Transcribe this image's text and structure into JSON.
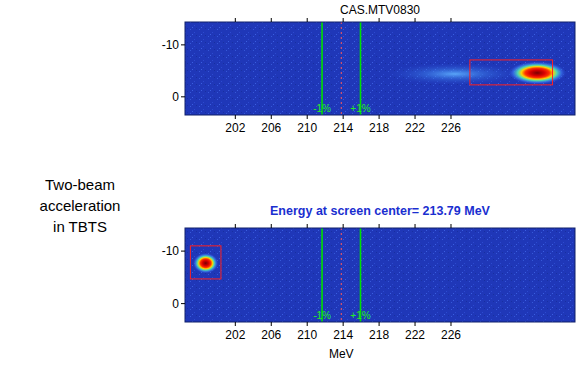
{
  "caption": [
    "Two-beam",
    "acceleration",
    "in TBTS"
  ],
  "chart_data": [
    {
      "type": "heatmap",
      "title": "CAS.MTV0830",
      "xlim": [
        196.4,
        239.8
      ],
      "xticks": [
        202,
        206,
        210,
        214,
        218,
        222,
        226
      ],
      "ylim": [
        3.5,
        -14.4
      ],
      "yticks": [
        -10,
        0
      ],
      "center_line": 213.79,
      "acceptance_lines": [
        211.65,
        215.93
      ],
      "acceptance_labels": [
        "-1%",
        "+1%"
      ],
      "spots": [
        {
          "x": 226.4,
          "y": -4.4,
          "x_width": 15,
          "y_width": 4.2,
          "intensity": 0.45
        },
        {
          "x": 235.6,
          "y": -4.6,
          "x_width": 6.4,
          "y_width": 4.4,
          "intensity": 1
        }
      ],
      "roi": {
        "x": [
          228.1,
          237.3
        ],
        "y": [
          -7.1,
          -2.3
        ]
      }
    },
    {
      "type": "heatmap",
      "title": "Energy at screen center= 213.79 MeV",
      "xlabel": "MeV",
      "xlim": [
        196.4,
        239.8
      ],
      "xticks": [
        202,
        206,
        210,
        214,
        218,
        222,
        226
      ],
      "ylim": [
        3.5,
        -14.4
      ],
      "yticks": [
        -10,
        0
      ],
      "center_line": 213.79,
      "acceptance_lines": [
        211.65,
        215.93
      ],
      "acceptance_labels": [
        "-1%",
        "+1%"
      ],
      "spots": [
        {
          "x": 198.7,
          "y": -7.7,
          "x_width": 2.8,
          "y_width": 3.9,
          "intensity": 1
        }
      ],
      "roi": {
        "x": [
          197.0,
          200.4
        ],
        "y": [
          -11,
          -4.7
        ]
      }
    }
  ]
}
